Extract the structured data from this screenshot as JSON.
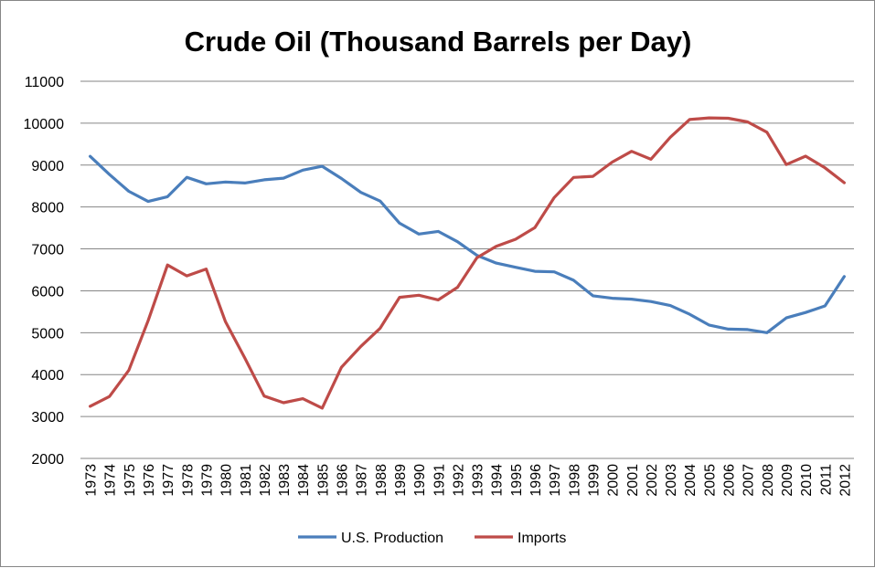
{
  "chart_data": {
    "type": "line",
    "title": "Crude Oil (Thousand Barrels per Day)",
    "xlabel": "",
    "ylabel": "",
    "ylim": [
      2000,
      11000
    ],
    "yticks": [
      2000,
      3000,
      4000,
      5000,
      6000,
      7000,
      8000,
      9000,
      10000,
      11000
    ],
    "grid": true,
    "legend_position": "bottom",
    "categories": [
      "1973",
      "1974",
      "1975",
      "1976",
      "1977",
      "1978",
      "1979",
      "1980",
      "1981",
      "1982",
      "1983",
      "1984",
      "1985",
      "1986",
      "1987",
      "1988",
      "1989",
      "1990",
      "1991",
      "1992",
      "1993",
      "1994",
      "1995",
      "1996",
      "1997",
      "1998",
      "1999",
      "2000",
      "2001",
      "2002",
      "2003",
      "2004",
      "2005",
      "2006",
      "2007",
      "2008",
      "2009",
      "2010",
      "2011",
      "2012"
    ],
    "series": [
      {
        "name": "U.S. Production",
        "color": "#4a7ebb",
        "values": [
          9208,
          8774,
          8375,
          8132,
          8245,
          8707,
          8552,
          8597,
          8572,
          8649,
          8688,
          8879,
          8971,
          8680,
          8349,
          8140,
          7613,
          7355,
          7417,
          7171,
          6847,
          6662,
          6560,
          6465,
          6452,
          6252,
          5881,
          5822,
          5801,
          5744,
          5649,
          5441,
          5184,
          5086,
          5074,
          5000,
          5353,
          5482,
          5640,
          6340
        ]
      },
      {
        "name": "Imports",
        "color": "#be4b48",
        "values": [
          3244,
          3477,
          4105,
          5287,
          6615,
          6356,
          6519,
          5263,
          4396,
          3488,
          3329,
          3426,
          3201,
          4178,
          4674,
          5107,
          5843,
          5894,
          5782,
          6083,
          6787,
          7063,
          7230,
          7508,
          8225,
          8706,
          8731,
          9071,
          9328,
          9140,
          9665,
          10088,
          10126,
          10118,
          10031,
          9783,
          9013,
          9213,
          8935,
          8580
        ]
      }
    ]
  }
}
